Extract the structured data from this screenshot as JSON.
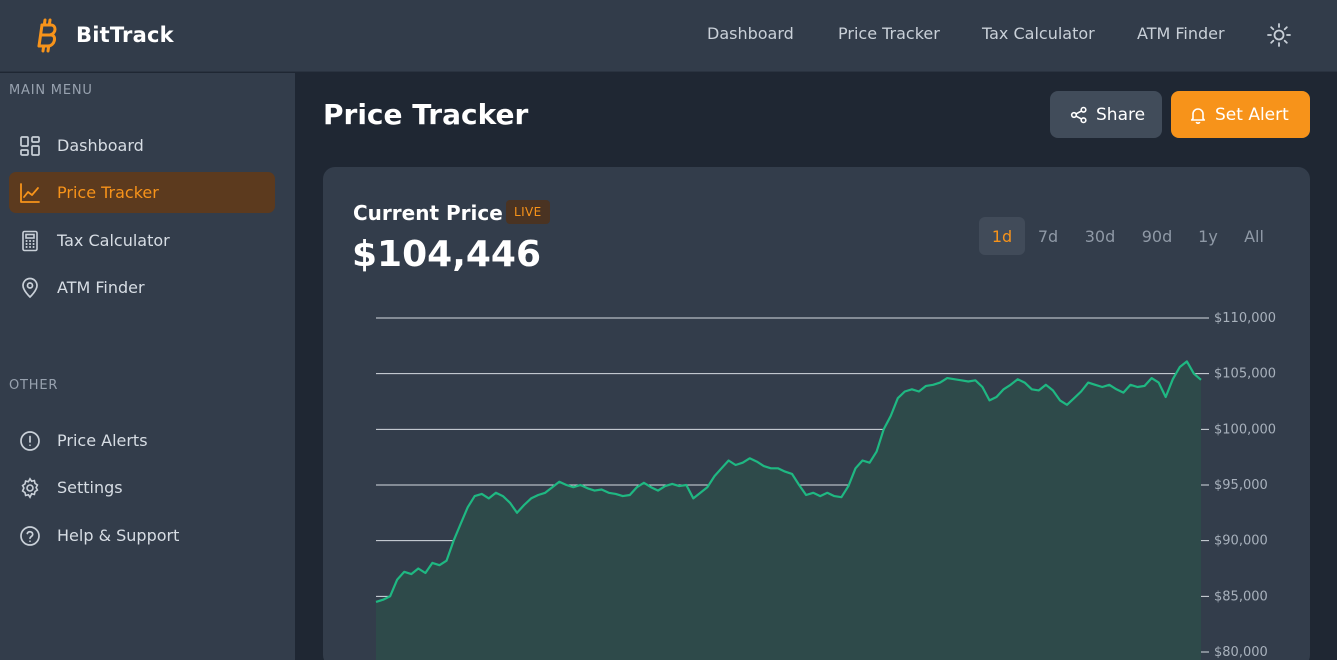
{
  "app": {
    "name": "BitTrack"
  },
  "topnav": {
    "items": [
      "Dashboard",
      "Price Tracker",
      "Tax Calculator",
      "ATM Finder"
    ]
  },
  "sidebar": {
    "main_label": "MAIN MENU",
    "main_items": [
      {
        "label": "Dashboard",
        "icon": "grid-icon",
        "active": false
      },
      {
        "label": "Price Tracker",
        "icon": "chart-line-icon",
        "active": true
      },
      {
        "label": "Tax Calculator",
        "icon": "calculator-icon",
        "active": false
      },
      {
        "label": "ATM Finder",
        "icon": "map-pin-icon",
        "active": false
      }
    ],
    "other_label": "OTHER",
    "other_items": [
      {
        "label": "Price Alerts",
        "icon": "alert-circle-icon",
        "active": false
      },
      {
        "label": "Settings",
        "icon": "gear-icon",
        "active": false
      },
      {
        "label": "Help & Support",
        "icon": "help-circle-icon",
        "active": false
      }
    ]
  },
  "page": {
    "title": "Price Tracker",
    "share_label": "Share",
    "alert_label": "Set Alert"
  },
  "card": {
    "title": "Current Price",
    "badge": "LIVE",
    "price": "$104,446",
    "ranges": [
      "1d",
      "7d",
      "30d",
      "90d",
      "1y",
      "All"
    ],
    "active_range": "1d"
  },
  "colors": {
    "accent": "#f7931a",
    "line": "#1fb882",
    "area": "#2e4a4a",
    "background": "#1f2733",
    "panel": "#333d4b"
  },
  "chart_data": {
    "type": "area",
    "series": [
      {
        "values": [
          84500,
          84700,
          85000,
          86500,
          87200,
          87000,
          87500,
          87100,
          88000,
          87800,
          88200,
          90000,
          91500,
          93000,
          94000,
          94200,
          93800,
          94300,
          94000,
          93400,
          92500,
          93200,
          93800,
          94100,
          94300,
          94800,
          95300,
          95000,
          94800,
          95000,
          94700,
          94500,
          94600,
          94300,
          94200,
          94000,
          94100,
          94800,
          95200,
          94800,
          94500,
          94900,
          95100,
          94900,
          95000,
          93800,
          94300,
          94800,
          95800,
          96500,
          97200,
          96800,
          97000,
          97400,
          97100,
          96700,
          96500,
          96500,
          96200,
          96000,
          95000,
          94100,
          94300,
          94000,
          94300,
          94000,
          93900,
          94900,
          96500,
          97200,
          97000,
          98000,
          100000,
          101200,
          102800,
          103400,
          103600,
          103400,
          103900,
          104000,
          104200,
          104600,
          104500,
          104400,
          104300,
          104400,
          103800,
          102600,
          102900,
          103600,
          104000,
          104500,
          104200,
          103600,
          103500,
          104000,
          103500,
          102600,
          102200,
          102800,
          103400,
          104200,
          104000,
          103800,
          104000,
          103600,
          103300,
          104000,
          103800,
          103900,
          104600,
          104200,
          102900,
          104500,
          105600,
          106100,
          105000,
          104446
        ]
      }
    ],
    "yticks": [
      "$110,000",
      "$105,000",
      "$100,000",
      "$95,000",
      "$90,000",
      "$85,000",
      "$80,000"
    ],
    "ylim": [
      80000,
      110000
    ],
    "grid": true
  }
}
